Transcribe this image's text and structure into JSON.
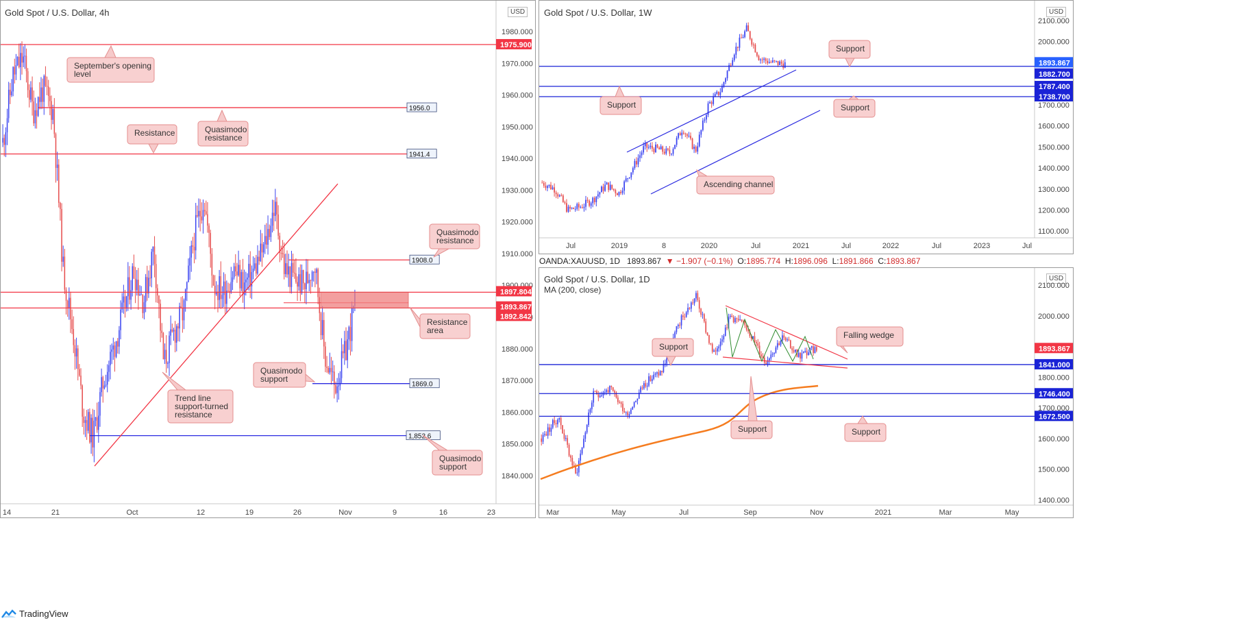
{
  "charts": [
    {
      "id": "c4h",
      "title": "Gold Spot / U.S. Dollar, 4h",
      "currency": "USD",
      "y_ticks": [
        "1980.000",
        "1970.000",
        "1960.000",
        "1950.000",
        "1940.000",
        "1930.000",
        "1920.000",
        "1910.000",
        "1900.000",
        "1890.000",
        "1880.000",
        "1870.000",
        "1860.000",
        "1850.000",
        "1840.000"
      ],
      "x_ticks": [
        "14",
        "21",
        "Oct",
        "12",
        "19",
        "26",
        "Nov",
        "9",
        "16",
        "23"
      ],
      "price_tags": [
        {
          "text": "1975.900",
          "color": "#f23645"
        },
        {
          "text": "1897.804",
          "color": "#f23645"
        },
        {
          "text": "1893.867",
          "color": "#f23645"
        },
        {
          "text": "1892.842",
          "color": "#f23645"
        }
      ],
      "level_labels": [
        "1956.0",
        "1941.4",
        "1908.0",
        "1869.0",
        "1,852.6"
      ],
      "annotations": [
        "September's opening level",
        "Quasimodo resistance",
        "Resistance",
        "Quasimodo resistance",
        "Resistance area",
        "Quasimodo support",
        "Trend line support-turned resistance",
        "Quasimodo support"
      ]
    },
    {
      "id": "c1w",
      "title": "Gold Spot / U.S. Dollar, 1W",
      "currency": "USD",
      "y_ticks": [
        "2100.000",
        "2000.000",
        "1900.000",
        "1800.000",
        "1700.000",
        "1600.000",
        "1500.000",
        "1400.000",
        "1300.000",
        "1200.000",
        "1100.000"
      ],
      "x_ticks": [
        "Jul",
        "2019",
        "8",
        "2020",
        "Jul",
        "2021",
        "Jul",
        "2022",
        "Jul",
        "2023",
        "Jul"
      ],
      "price_tags": [
        {
          "text": "1893.867",
          "color": "#2962ff"
        },
        {
          "text": "1882.700",
          "color": "#1a23d6"
        },
        {
          "text": "1787.400",
          "color": "#1a23d6"
        },
        {
          "text": "1738.700",
          "color": "#1a23d6"
        }
      ],
      "annotations": [
        "Support",
        "Support",
        "Support",
        "Ascending channel"
      ]
    },
    {
      "id": "c1d",
      "title": "Gold Spot / U.S. Dollar, 1D",
      "currency": "USD",
      "indicator": "MA (200, close)",
      "y_ticks": [
        "2100.000",
        "2000.000",
        "1900.000",
        "1800.000",
        "1700.000",
        "1600.000",
        "1500.000",
        "1400.000"
      ],
      "x_ticks": [
        "Mar",
        "May",
        "Jul",
        "Sep",
        "Nov",
        "2021",
        "Mar",
        "May"
      ],
      "price_tags": [
        {
          "text": "1893.867",
          "color": "#f23645"
        },
        {
          "text": "1841.000",
          "color": "#1a23d6"
        },
        {
          "text": "1746.400",
          "color": "#1a23d6"
        },
        {
          "text": "1672.500",
          "color": "#1a23d6"
        }
      ],
      "annotations": [
        "Falling wedge",
        "Support",
        "Support",
        "Support"
      ]
    }
  ],
  "infobar": {
    "symbol": "OANDA:XAUUSD, 1D",
    "last": "1893.867",
    "arrow": "▼",
    "change": "−1.907 (−0.1%)",
    "o_label": "O:",
    "o": "1895.774",
    "h_label": "H:",
    "h": "1896.096",
    "l_label": "L:",
    "l": "1891.866",
    "c_label": "C:",
    "c": "1893.867"
  },
  "footer": {
    "brand": "TradingView"
  },
  "chart_data": [
    {
      "type": "candlestick",
      "title": "Gold Spot / U.S. Dollar, 4h",
      "ylim": [
        1835,
        1990
      ],
      "x_ticks": [
        "14",
        "21",
        "Oct",
        "12",
        "19",
        "26",
        "Nov",
        "9",
        "16",
        "23"
      ],
      "path_keypoints": [
        {
          "x": "Sep 14",
          "y": 1945
        },
        {
          "x": "Sep 16",
          "y": 1966
        },
        {
          "x": "Sep 17",
          "y": 1972
        },
        {
          "x": "Sep 18",
          "y": 1955
        },
        {
          "x": "Sep 19",
          "y": 1962
        },
        {
          "x": "Sep 21",
          "y": 1955
        },
        {
          "x": "Sep 22",
          "y": 1905
        },
        {
          "x": "Sep 23",
          "y": 1885
        },
        {
          "x": "Sep 24",
          "y": 1860
        },
        {
          "x": "Sep 25",
          "y": 1852
        },
        {
          "x": "Sep 28",
          "y": 1870
        },
        {
          "x": "Sep 29",
          "y": 1880
        },
        {
          "x": "Sep 30",
          "y": 1892
        },
        {
          "x": "Oct 1",
          "y": 1905
        },
        {
          "x": "Oct 2",
          "y": 1895
        },
        {
          "x": "Oct 5",
          "y": 1912
        },
        {
          "x": "Oct 6",
          "y": 1875
        },
        {
          "x": "Oct 7",
          "y": 1885
        },
        {
          "x": "Oct 8",
          "y": 1892
        },
        {
          "x": "Oct 9",
          "y": 1915
        },
        {
          "x": "Oct 12",
          "y": 1928
        },
        {
          "x": "Oct 13",
          "y": 1900
        },
        {
          "x": "Oct 14",
          "y": 1898
        },
        {
          "x": "Oct 15",
          "y": 1905
        },
        {
          "x": "Oct 16",
          "y": 1900
        },
        {
          "x": "Oct 19",
          "y": 1905
        },
        {
          "x": "Oct 20",
          "y": 1912
        },
        {
          "x": "Oct 21",
          "y": 1925
        },
        {
          "x": "Oct 22",
          "y": 1905
        },
        {
          "x": "Oct 23",
          "y": 1902
        },
        {
          "x": "Oct 26",
          "y": 1900
        },
        {
          "x": "Oct 27",
          "y": 1908
        },
        {
          "x": "Oct 28",
          "y": 1878
        },
        {
          "x": "Oct 29",
          "y": 1868
        },
        {
          "x": "Oct 30",
          "y": 1878
        },
        {
          "x": "Nov 2",
          "y": 1893.867
        }
      ],
      "horizontal_levels": [
        {
          "label": "September's opening level",
          "value": 1975.9
        },
        {
          "label": "Quasimodo resistance",
          "value": 1956.0
        },
        {
          "label": "Resistance",
          "value": 1941.4
        },
        {
          "label": "Quasimodo resistance",
          "value": 1908.0
        },
        {
          "label": "Quasimodo support",
          "value": 1869.0
        },
        {
          "label": "Quasimodo support",
          "value": 1852.6
        }
      ],
      "zones": [
        {
          "label": "Resistance area",
          "from": 1892.842,
          "to": 1897.804
        }
      ],
      "trendlines": [
        {
          "label": "Trend line support-turned resistance",
          "from": {
            "x": "Sep 24",
            "y": 1843
          },
          "to": {
            "x": "Oct 28",
            "y": 1932
          }
        }
      ],
      "last_price": 1893.867
    },
    {
      "type": "candlestick",
      "title": "Gold Spot / U.S. Dollar, 1W",
      "ylim": [
        1050,
        2150
      ],
      "x_ticks": [
        "Jul",
        "2019",
        "8",
        "2020",
        "Jul",
        "2021",
        "Jul",
        "2022",
        "Jul",
        "2023",
        "Jul"
      ],
      "path_keypoints": [
        {
          "x": "2018-04",
          "y": 1330
        },
        {
          "x": "2018-06",
          "y": 1300
        },
        {
          "x": "2018-08",
          "y": 1200
        },
        {
          "x": "2018-10",
          "y": 1215
        },
        {
          "x": "2018-12",
          "y": 1250
        },
        {
          "x": "2019-02",
          "y": 1320
        },
        {
          "x": "2019-04",
          "y": 1280
        },
        {
          "x": "2019-06",
          "y": 1390
        },
        {
          "x": "2019-08",
          "y": 1500
        },
        {
          "x": "2019-10",
          "y": 1490
        },
        {
          "x": "2019-12",
          "y": 1470
        },
        {
          "x": "2020-02",
          "y": 1590
        },
        {
          "x": "2020-03",
          "y": 1480
        },
        {
          "x": "2020-04",
          "y": 1700
        },
        {
          "x": "2020-06",
          "y": 1770
        },
        {
          "x": "2020-07",
          "y": 1950
        },
        {
          "x": "2020-08",
          "y": 2060
        },
        {
          "x": "2020-09",
          "y": 1920
        },
        {
          "x": "2020-10",
          "y": 1900
        },
        {
          "x": "2020-11",
          "y": 1893.867
        }
      ],
      "horizontal_levels": [
        {
          "label": "Support",
          "value": 1882.7
        },
        {
          "label": "Support",
          "value": 1787.4
        },
        {
          "label": "Support",
          "value": 1738.7
        }
      ],
      "channel": {
        "label": "Ascending channel",
        "upper": [
          {
            "x": "2018-12",
            "y": 1525
          },
          {
            "x": "2020-11",
            "y": 1860
          }
        ],
        "lower": [
          {
            "x": "2019-05",
            "y": 1280
          },
          {
            "x": "2021-06",
            "y": 1670
          }
        ]
      },
      "last_price": 1893.867
    },
    {
      "type": "candlestick",
      "title": "Gold Spot / U.S. Dollar, 1D",
      "ylim": [
        1390,
        2130
      ],
      "x_ticks": [
        "Mar",
        "May",
        "Jul",
        "Sep",
        "Nov",
        "2021",
        "Mar",
        "May"
      ],
      "indicator": "MA (200, close)",
      "path_keypoints": [
        {
          "x": "2020-02-20",
          "y": 1600
        },
        {
          "x": "2020-03-09",
          "y": 1670
        },
        {
          "x": "2020-03-19",
          "y": 1480
        },
        {
          "x": "2020-04-14",
          "y": 1740
        },
        {
          "x": "2020-05-18",
          "y": 1760
        },
        {
          "x": "2020-06-05",
          "y": 1680
        },
        {
          "x": "2020-06-30",
          "y": 1780
        },
        {
          "x": "2020-07-20",
          "y": 1820
        },
        {
          "x": "2020-07-31",
          "y": 1975
        },
        {
          "x": "2020-08-07",
          "y": 2065
        },
        {
          "x": "2020-08-12",
          "y": 1870
        },
        {
          "x": "2020-08-18",
          "y": 2000
        },
        {
          "x": "2020-09-16",
          "y": 1960
        },
        {
          "x": "2020-09-24",
          "y": 1850
        },
        {
          "x": "2020-10-09",
          "y": 1930
        },
        {
          "x": "2020-10-28",
          "y": 1870
        },
        {
          "x": "2020-11-02",
          "y": 1893.867
        }
      ],
      "moving_average_200": [
        {
          "x": "2020-02-20",
          "y": 1500
        },
        {
          "x": "2020-05-01",
          "y": 1580
        },
        {
          "x": "2020-07-01",
          "y": 1620
        },
        {
          "x": "2020-08-15",
          "y": 1690
        },
        {
          "x": "2020-11-02",
          "y": 1775
        }
      ],
      "horizontal_levels": [
        {
          "label": "Support",
          "value": 1841.0
        },
        {
          "label": "Support",
          "value": 1746.4
        },
        {
          "label": "Support",
          "value": 1672.5
        }
      ],
      "wedge": {
        "label": "Falling wedge",
        "upper": [
          {
            "x": "2020-08-10",
            "y": 2035
          },
          {
            "x": "2020-11-25",
            "y": 1855
          }
        ],
        "lower": [
          {
            "x": "2020-08-10",
            "y": 1855
          },
          {
            "x": "2020-11-25",
            "y": 1825
          }
        ]
      },
      "last_price": 1893.867
    }
  ]
}
